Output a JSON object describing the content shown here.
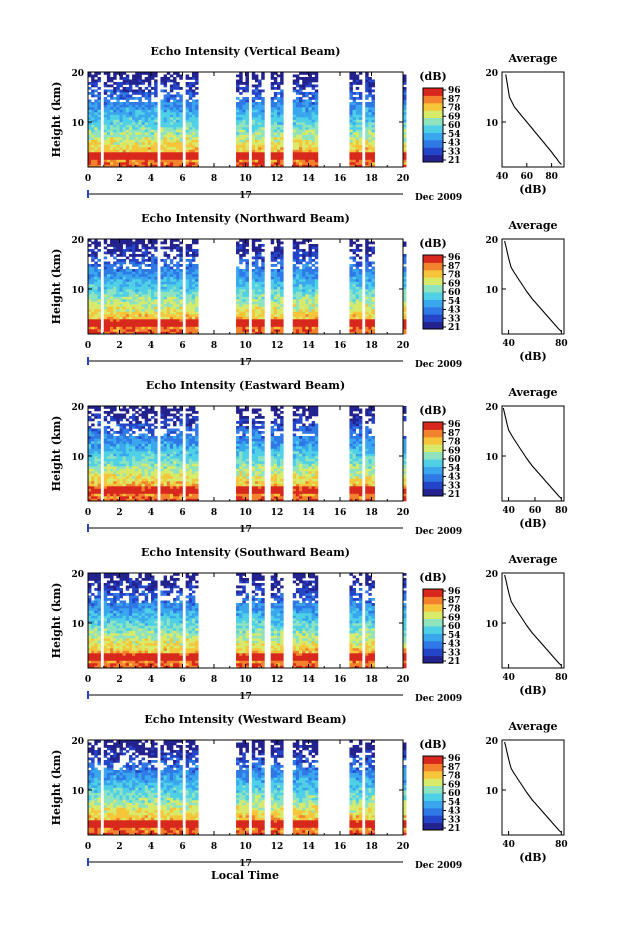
{
  "colorbar": {
    "unit_label": "(dB)",
    "ticks": [
      "96",
      "87",
      "78",
      "69",
      "60",
      "54",
      "43",
      "33",
      "21"
    ]
  },
  "avg_xlabel": "(dB)",
  "avg_title": "Average",
  "date_label": "Dec 2009",
  "day_label": "17",
  "xlabel": "Local Time",
  "ylabel": "Height (km)",
  "time_ticks": [
    "0",
    "2",
    "4",
    "6",
    "8",
    "10",
    "12",
    "14",
    "16",
    "18",
    "20"
  ],
  "height_ticks": [
    "20",
    "10"
  ],
  "colors": {
    "scale": [
      "#23228e",
      "#2445c8",
      "#2f79e6",
      "#3aa6ee",
      "#4fd0e6",
      "#8fe3bf",
      "#d7ea6a",
      "#f6c53a",
      "#f2822b",
      "#d8281d"
    ]
  },
  "chart_data": [
    {
      "type": "heatmap",
      "title": "Echo Intensity (Vertical Beam)",
      "xlabel": "Local Time",
      "ylabel": "Height (km)",
      "xlim": [
        0,
        20
      ],
      "ylim": [
        1,
        20
      ],
      "gaps": [
        [
          0.85,
          1.05
        ],
        [
          4.4,
          4.55
        ],
        [
          5.35,
          5.5
        ],
        [
          6.1,
          6.3
        ],
        [
          7.0,
          9.4
        ],
        [
          10.2,
          10.4
        ],
        [
          11.2,
          11.5
        ],
        [
          12.4,
          12.9
        ],
        [
          14.5,
          16.6
        ],
        [
          17.4,
          17.6
        ],
        [
          18.2,
          20
        ]
      ],
      "profile_x": [
        88,
        86,
        84,
        82,
        80,
        78,
        76,
        74,
        72,
        70,
        68,
        66,
        64,
        62,
        60,
        58,
        56,
        54,
        52,
        50,
        48,
        46,
        45,
        44,
        43
      ],
      "profile_y": [
        1.5,
        2,
        2.7,
        3.3,
        4,
        4.6,
        5.2,
        5.8,
        6.4,
        7,
        7.6,
        8.2,
        8.8,
        9.4,
        10,
        10.6,
        11.2,
        11.8,
        12.4,
        13,
        14,
        15,
        16.5,
        18,
        19.5
      ],
      "avg_xlim": [
        40,
        90
      ],
      "avg_xticks": [
        "40",
        "60",
        "80"
      ],
      "hot_bottom": 0.8
    },
    {
      "type": "heatmap",
      "title": "Echo Intensity (Northward Beam)",
      "xlabel": "Local Time",
      "ylabel": "Height (km)",
      "xlim": [
        0,
        20
      ],
      "ylim": [
        1,
        20
      ],
      "gaps": [
        [
          0.85,
          1.05
        ],
        [
          4.4,
          4.55
        ],
        [
          5.35,
          5.5
        ],
        [
          6.1,
          6.3
        ],
        [
          7.0,
          9.4
        ],
        [
          10.2,
          10.4
        ],
        [
          11.2,
          11.5
        ],
        [
          12.4,
          12.9
        ],
        [
          14.5,
          16.6
        ],
        [
          17.4,
          17.6
        ],
        [
          18.2,
          20
        ]
      ],
      "profile_x": [
        80,
        78,
        76,
        74,
        72,
        70,
        68,
        66,
        64,
        62,
        60,
        58,
        56,
        54,
        52,
        50,
        48,
        46,
        44,
        42,
        41,
        40,
        39,
        38,
        37
      ],
      "profile_y": [
        1.5,
        2,
        2.6,
        3.2,
        3.8,
        4.4,
        5,
        5.6,
        6.2,
        6.8,
        7.4,
        8,
        8.7,
        9.4,
        10.2,
        11,
        11.8,
        12.6,
        13.4,
        14.3,
        15.2,
        16.2,
        17.3,
        18.5,
        19.6
      ],
      "avg_xlim": [
        35,
        82
      ],
      "avg_xticks": [
        "40",
        "80"
      ],
      "hot_bottom": 0.55
    },
    {
      "type": "heatmap",
      "title": "Echo Intensity (Eastward Beam)",
      "xlabel": "Local Time",
      "ylabel": "Height (km)",
      "xlim": [
        0,
        20
      ],
      "ylim": [
        1,
        20
      ],
      "gaps": [
        [
          0.85,
          1.05
        ],
        [
          4.4,
          4.55
        ],
        [
          5.35,
          5.5
        ],
        [
          6.1,
          6.3
        ],
        [
          7.0,
          9.4
        ],
        [
          10.2,
          10.4
        ],
        [
          11.2,
          11.5
        ],
        [
          12.4,
          12.9
        ],
        [
          14.5,
          16.6
        ],
        [
          17.4,
          17.6
        ],
        [
          18.2,
          20
        ]
      ],
      "profile_x": [
        80,
        78,
        76,
        74,
        72,
        70,
        68,
        66,
        64,
        62,
        60,
        58,
        56,
        54,
        52,
        50,
        48,
        46,
        44,
        42,
        40,
        39,
        38,
        37,
        36
      ],
      "profile_y": [
        1.5,
        2,
        2.6,
        3.2,
        3.8,
        4.4,
        5,
        5.6,
        6.2,
        6.8,
        7.4,
        8,
        8.7,
        9.4,
        10.2,
        11,
        11.8,
        12.6,
        13.4,
        14.3,
        15.2,
        16.2,
        17.3,
        18.5,
        19.6
      ],
      "avg_xlim": [
        35,
        82
      ],
      "avg_xticks": [
        "40",
        "60",
        "80"
      ],
      "hot_bottom": 0.5
    },
    {
      "type": "heatmap",
      "title": "Echo Intensity (Southward Beam)",
      "xlabel": "Local Time",
      "ylabel": "Height (km)",
      "xlim": [
        0,
        20
      ],
      "ylim": [
        1,
        20
      ],
      "gaps": [
        [
          0.85,
          1.05
        ],
        [
          4.4,
          4.55
        ],
        [
          5.35,
          5.5
        ],
        [
          6.1,
          6.3
        ],
        [
          7.0,
          9.4
        ],
        [
          10.2,
          10.4
        ],
        [
          11.2,
          11.5
        ],
        [
          12.4,
          12.9
        ],
        [
          14.5,
          16.6
        ],
        [
          17.4,
          17.6
        ],
        [
          18.2,
          20
        ]
      ],
      "profile_x": [
        80,
        78,
        76,
        74,
        72,
        70,
        68,
        66,
        64,
        62,
        60,
        58,
        56,
        54,
        52,
        50,
        48,
        46,
        44,
        42,
        41,
        40,
        39,
        38,
        37
      ],
      "profile_y": [
        1.5,
        2,
        2.6,
        3.2,
        3.8,
        4.4,
        5,
        5.6,
        6.2,
        6.8,
        7.4,
        8,
        8.7,
        9.4,
        10.2,
        11,
        11.8,
        12.6,
        13.4,
        14.3,
        15.2,
        16.2,
        17.3,
        18.5,
        19.6
      ],
      "avg_xlim": [
        35,
        82
      ],
      "avg_xticks": [
        "40",
        "80"
      ],
      "hot_bottom": 0.55
    },
    {
      "type": "heatmap",
      "title": "Echo Intensity (Westward Beam)",
      "xlabel": "Local Time",
      "ylabel": "Height (km)",
      "xlim": [
        0,
        20
      ],
      "ylim": [
        1,
        20
      ],
      "gaps": [
        [
          0.85,
          1.05
        ],
        [
          4.4,
          4.55
        ],
        [
          5.35,
          5.5
        ],
        [
          6.1,
          6.3
        ],
        [
          7.0,
          9.4
        ],
        [
          10.2,
          10.4
        ],
        [
          11.2,
          11.5
        ],
        [
          12.4,
          12.9
        ],
        [
          14.5,
          16.6
        ],
        [
          17.4,
          17.6
        ],
        [
          18.2,
          20
        ]
      ],
      "profile_x": [
        80,
        78,
        76,
        74,
        72,
        70,
        68,
        66,
        64,
        62,
        60,
        58,
        56,
        54,
        52,
        50,
        48,
        46,
        44,
        42,
        41,
        40,
        39,
        38,
        37
      ],
      "profile_y": [
        1.5,
        2,
        2.6,
        3.2,
        3.8,
        4.4,
        5,
        5.6,
        6.2,
        6.8,
        7.4,
        8,
        8.7,
        9.4,
        10.2,
        11,
        11.8,
        12.6,
        13.4,
        14.3,
        15.2,
        16.2,
        17.3,
        18.5,
        19.6
      ],
      "avg_xlim": [
        35,
        82
      ],
      "avg_xticks": [
        "40",
        "80"
      ],
      "hot_bottom": 0.6
    }
  ]
}
